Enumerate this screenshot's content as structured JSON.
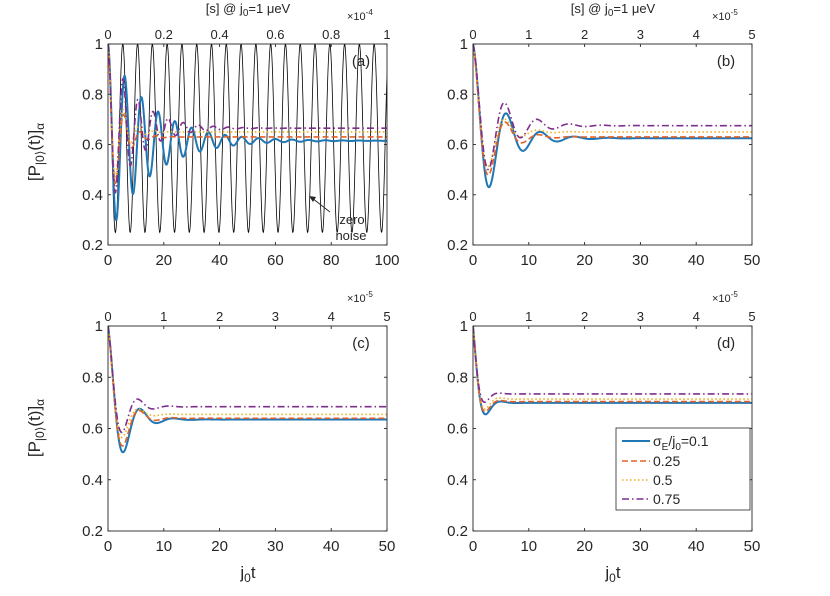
{
  "figure": {
    "xlabel": "j",
    "xlabel_sub": "0",
    "xlabel_tail": "t",
    "ylabel_main": "[P",
    "ylabel_sub": "|0⟩",
    "ylabel_paren": "(t)]",
    "ylabel_alpha": "α",
    "top_axis_prefix": "[s] @ j",
    "top_axis_sub": "0",
    "top_axis_suffix": "=1 μeV",
    "legend_first_prefix": "σ",
    "legend_first_sub_e": "E",
    "legend_first_mid": "/j",
    "legend_first_sub_0": "0",
    "legend_first_value": "=0.1",
    "legend_items": [
      "0.25",
      "0.5",
      "0.75"
    ],
    "annotation_line1": "zero",
    "annotation_line2": "noise"
  },
  "colors": {
    "s01": "#1f77b4",
    "s025": "#e0622a",
    "s05": "#edb020",
    "s075": "#7e2f8e",
    "zero": "#000000",
    "axis": "#262626"
  },
  "chart_data": [
    {
      "type": "line",
      "panel_label": "(a)",
      "xlim": [
        0,
        100
      ],
      "ylim": [
        0.2,
        1.0
      ],
      "xticks": [
        "0",
        "20",
        "40",
        "60",
        "80",
        "100"
      ],
      "yticks": [
        "0.2",
        "0.4",
        "0.6",
        "0.8",
        "1"
      ],
      "top_ticks": [
        "0",
        "0.2",
        "0.4",
        "0.6",
        "0.8",
        "1"
      ],
      "top_exponent_base": "×10",
      "top_exponent": "-4",
      "series": [
        {
          "name": "zero noise",
          "color_key": "zero",
          "dash": "",
          "width": 0.8,
          "osc": {
            "eq": 0.625,
            "amp": 0.375,
            "period": 5.3,
            "tau": 100000
          }
        },
        {
          "name": "σE/j0=0.1",
          "color_key": "s01",
          "dash": "",
          "width": 2.0,
          "osc": {
            "eq": 0.615,
            "amp": 0.385,
            "period": 6.0,
            "tau": 15
          }
        },
        {
          "name": "0.25",
          "color_key": "s025",
          "dash": "6,3",
          "width": 1.6,
          "osc": {
            "eq": 0.63,
            "amp": 0.37,
            "period": 5.8,
            "tau": 4
          }
        },
        {
          "name": "0.5",
          "color_key": "s05",
          "dash": "1.5,2.5",
          "width": 1.6,
          "osc": {
            "eq": 0.65,
            "amp": 0.35,
            "period": 5.6,
            "tau": 4
          }
        },
        {
          "name": "0.75",
          "color_key": "s075",
          "dash": "7,3,1.5,3",
          "width": 1.6,
          "osc": {
            "eq": 0.665,
            "amp": 0.335,
            "period": 5.4,
            "tau": 10
          }
        }
      ]
    },
    {
      "type": "line",
      "panel_label": "(b)",
      "xlim": [
        0,
        50
      ],
      "ylim": [
        0.2,
        1.0
      ],
      "xticks": [
        "0",
        "10",
        "20",
        "30",
        "40",
        "50"
      ],
      "yticks": [
        "0.2",
        "0.4",
        "0.6",
        "0.8",
        "1"
      ],
      "top_ticks": [
        "0",
        "1",
        "2",
        "3",
        "4",
        "5"
      ],
      "top_exponent_base": "×10",
      "top_exponent": "-5",
      "series": [
        {
          "name": "σE/j0=0.1",
          "color_key": "s01",
          "dash": "",
          "width": 2.0,
          "osc": {
            "eq": 0.625,
            "amp": 0.375,
            "period": 6.1,
            "tau": 4.5
          }
        },
        {
          "name": "0.25",
          "color_key": "s025",
          "dash": "6,3",
          "width": 1.6,
          "osc": {
            "eq": 0.63,
            "amp": 0.37,
            "period": 6.0,
            "tau": 3.2
          }
        },
        {
          "name": "0.5",
          "color_key": "s05",
          "dash": "1.5,2.5",
          "width": 1.6,
          "osc": {
            "eq": 0.65,
            "amp": 0.35,
            "period": 5.9,
            "tau": 3.0
          }
        },
        {
          "name": "0.75",
          "color_key": "s075",
          "dash": "7,3,1.5,3",
          "width": 1.6,
          "osc": {
            "eq": 0.675,
            "amp": 0.325,
            "period": 5.8,
            "tau": 4.5
          }
        }
      ]
    },
    {
      "type": "line",
      "panel_label": "(c)",
      "xlim": [
        0,
        50
      ],
      "ylim": [
        0.2,
        1.0
      ],
      "xticks": [
        "0",
        "10",
        "20",
        "30",
        "40",
        "50"
      ],
      "yticks": [
        "0.2",
        "0.4",
        "0.6",
        "0.8",
        "1"
      ],
      "top_ticks": [
        "0",
        "1",
        "2",
        "3",
        "4",
        "5"
      ],
      "top_exponent_base": "×10",
      "top_exponent": "-5",
      "series": [
        {
          "name": "σE/j0=0.1",
          "color_key": "s01",
          "dash": "",
          "width": 2.0,
          "osc": {
            "eq": 0.635,
            "amp": 0.365,
            "period": 6.0,
            "tau": 2.7
          }
        },
        {
          "name": "0.25",
          "color_key": "s025",
          "dash": "6,3",
          "width": 1.6,
          "osc": {
            "eq": 0.64,
            "amp": 0.36,
            "period": 5.9,
            "tau": 2.3
          }
        },
        {
          "name": "0.5",
          "color_key": "s05",
          "dash": "1.5,2.5",
          "width": 1.6,
          "osc": {
            "eq": 0.655,
            "amp": 0.345,
            "period": 5.8,
            "tau": 2.0
          }
        },
        {
          "name": "0.75",
          "color_key": "s075",
          "dash": "7,3,1.5,3",
          "width": 1.6,
          "osc": {
            "eq": 0.685,
            "amp": 0.315,
            "period": 5.6,
            "tau": 2.3
          }
        }
      ]
    },
    {
      "type": "line",
      "panel_label": "(d)",
      "xlim": [
        0,
        50
      ],
      "ylim": [
        0.2,
        1.0
      ],
      "xticks": [
        "0",
        "10",
        "20",
        "30",
        "40",
        "50"
      ],
      "yticks": [
        "0.2",
        "0.4",
        "0.6",
        "0.8",
        "1"
      ],
      "top_ticks": [
        "0",
        "1",
        "2",
        "3",
        "4",
        "5"
      ],
      "top_exponent_base": "×10",
      "top_exponent": "-5",
      "series": [
        {
          "name": "σE/j0=0.1",
          "color_key": "s01",
          "dash": "",
          "width": 2.0,
          "osc": {
            "eq": 0.7,
            "amp": 0.3,
            "period": 5.5,
            "tau": 1.3
          }
        },
        {
          "name": "0.25",
          "color_key": "s025",
          "dash": "6,3",
          "width": 1.6,
          "osc": {
            "eq": 0.705,
            "amp": 0.295,
            "period": 5.4,
            "tau": 1.2
          }
        },
        {
          "name": "0.5",
          "color_key": "s05",
          "dash": "1.5,2.5",
          "width": 1.6,
          "osc": {
            "eq": 0.715,
            "amp": 0.285,
            "period": 5.3,
            "tau": 1.2
          }
        },
        {
          "name": "0.75",
          "color_key": "s075",
          "dash": "7,3,1.5,3",
          "width": 1.6,
          "osc": {
            "eq": 0.735,
            "amp": 0.265,
            "period": 5.2,
            "tau": 1.1
          }
        }
      ]
    }
  ]
}
